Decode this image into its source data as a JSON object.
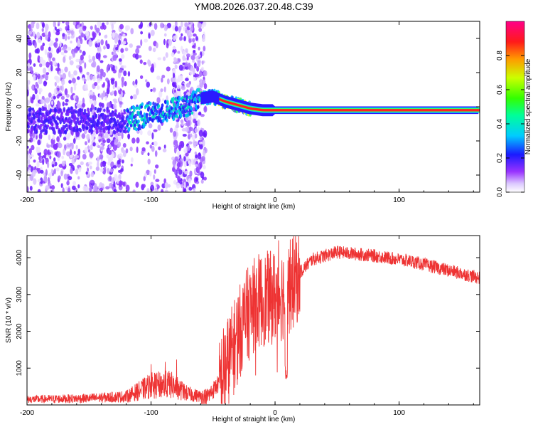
{
  "title": "YM08.2026.037.20.48.C39",
  "chart_data": [
    {
      "type": "heatmap",
      "id": "spectrogram",
      "xlabel": "Height of straight line (km)",
      "ylabel": "Frequency (Hz)",
      "xlim": [
        -200,
        165
      ],
      "ylim": [
        -50,
        50
      ],
      "xticks": [
        -200,
        -100,
        0,
        100
      ],
      "yticks": [
        -40,
        -20,
        0,
        20,
        40
      ],
      "ridge": [
        {
          "x": -200,
          "y": -8
        },
        {
          "x": -150,
          "y": -8
        },
        {
          "x": -120,
          "y": -8
        },
        {
          "x": -100,
          "y": -4
        },
        {
          "x": -85,
          "y": -2
        },
        {
          "x": -70,
          "y": 1
        },
        {
          "x": -60,
          "y": 5
        },
        {
          "x": -50,
          "y": 6
        },
        {
          "x": -40,
          "y": 3
        },
        {
          "x": -30,
          "y": 1
        },
        {
          "x": -20,
          "y": -1
        },
        {
          "x": -10,
          "y": -2
        },
        {
          "x": 0,
          "y": -2
        },
        {
          "x": 20,
          "y": -2
        },
        {
          "x": 165,
          "y": -2
        }
      ],
      "colorbar": {
        "label": "Normalized spectral amplitude",
        "range": [
          0,
          1
        ],
        "ticks": [
          0.0,
          0.2,
          0.4,
          0.6,
          0.8
        ]
      }
    },
    {
      "type": "line",
      "id": "snr",
      "xlabel": "Height of straight line (km)",
      "ylabel": "SNR (10 * v/v)",
      "xlim": [
        -200,
        165
      ],
      "ylim": [
        0,
        4600
      ],
      "xticks": [
        -200,
        -100,
        0,
        100
      ],
      "yticks": [
        1000,
        2000,
        3000,
        4000
      ],
      "series": [
        {
          "name": "SNR",
          "color": "#ee3333",
          "envelope": [
            {
              "x": -200,
              "y": 150
            },
            {
              "x": -150,
              "y": 180
            },
            {
              "x": -120,
              "y": 230
            },
            {
              "x": -100,
              "y": 520
            },
            {
              "x": -85,
              "y": 560
            },
            {
              "x": -70,
              "y": 300
            },
            {
              "x": -55,
              "y": 200
            },
            {
              "x": -45,
              "y": 600
            },
            {
              "x": -35,
              "y": 1400
            },
            {
              "x": -25,
              "y": 2300
            },
            {
              "x": -15,
              "y": 2800
            },
            {
              "x": -5,
              "y": 2900
            },
            {
              "x": 5,
              "y": 3000
            },
            {
              "x": 12,
              "y": 3200
            },
            {
              "x": 20,
              "y": 3600
            },
            {
              "x": 30,
              "y": 3950
            },
            {
              "x": 50,
              "y": 4150
            },
            {
              "x": 80,
              "y": 4050
            },
            {
              "x": 110,
              "y": 3900
            },
            {
              "x": 140,
              "y": 3650
            },
            {
              "x": 165,
              "y": 3450
            }
          ]
        }
      ]
    }
  ]
}
